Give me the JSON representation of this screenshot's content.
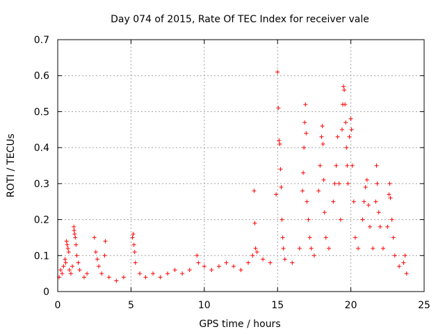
{
  "chart_data": {
    "type": "scatter",
    "title": "Day 074 of 2015, Rate Of TEC Index for receiver vale",
    "xlabel": "GPS time / hours",
    "ylabel": "ROTI / TECUs",
    "xlim": [
      0,
      25
    ],
    "ylim": [
      0,
      0.7
    ],
    "x_ticks": [
      0,
      5,
      10,
      15,
      20,
      25
    ],
    "x_tick_labels": [
      "0",
      "5",
      "10",
      "15",
      "20",
      "25"
    ],
    "y_ticks": [
      0,
      0.1,
      0.2,
      0.3,
      0.4,
      0.5,
      0.6,
      0.7
    ],
    "y_tick_labels": [
      "0",
      "0.1",
      "0.2",
      "0.3",
      "0.4",
      "0.5",
      "0.6",
      "0.7"
    ],
    "grid": true,
    "marker": "+",
    "color": "#ff0000",
    "series": [
      {
        "name": "ROTI",
        "points": [
          [
            0.1,
            0.04
          ],
          [
            0.2,
            0.06
          ],
          [
            0.3,
            0.05
          ],
          [
            0.4,
            0.07
          ],
          [
            0.5,
            0.09
          ],
          [
            0.55,
            0.08
          ],
          [
            0.6,
            0.14
          ],
          [
            0.65,
            0.13
          ],
          [
            0.7,
            0.12
          ],
          [
            0.75,
            0.11
          ],
          [
            0.8,
            0.06
          ],
          [
            0.9,
            0.05
          ],
          [
            1.0,
            0.07
          ],
          [
            1.1,
            0.18
          ],
          [
            1.12,
            0.17
          ],
          [
            1.15,
            0.16
          ],
          [
            1.2,
            0.15
          ],
          [
            1.25,
            0.13
          ],
          [
            1.3,
            0.1
          ],
          [
            1.4,
            0.08
          ],
          [
            1.5,
            0.06
          ],
          [
            1.8,
            0.04
          ],
          [
            2.0,
            0.05
          ],
          [
            2.5,
            0.15
          ],
          [
            2.6,
            0.11
          ],
          [
            2.7,
            0.09
          ],
          [
            2.8,
            0.07
          ],
          [
            3.0,
            0.05
          ],
          [
            3.2,
            0.1
          ],
          [
            3.25,
            0.14
          ],
          [
            3.5,
            0.04
          ],
          [
            4.0,
            0.03
          ],
          [
            4.5,
            0.04
          ],
          [
            5.1,
            0.15
          ],
          [
            5.15,
            0.16
          ],
          [
            5.2,
            0.13
          ],
          [
            5.25,
            0.11
          ],
          [
            5.3,
            0.08
          ],
          [
            5.6,
            0.05
          ],
          [
            6.0,
            0.04
          ],
          [
            6.5,
            0.05
          ],
          [
            7.0,
            0.04
          ],
          [
            7.5,
            0.05
          ],
          [
            8.0,
            0.06
          ],
          [
            8.5,
            0.05
          ],
          [
            9.0,
            0.06
          ],
          [
            9.5,
            0.1
          ],
          [
            9.6,
            0.08
          ],
          [
            10.0,
            0.07
          ],
          [
            10.5,
            0.06
          ],
          [
            11.0,
            0.07
          ],
          [
            11.5,
            0.08
          ],
          [
            12.0,
            0.07
          ],
          [
            12.5,
            0.06
          ],
          [
            13.0,
            0.08
          ],
          [
            13.3,
            0.1
          ],
          [
            13.4,
            0.28
          ],
          [
            13.45,
            0.19
          ],
          [
            13.5,
            0.12
          ],
          [
            13.6,
            0.11
          ],
          [
            14.0,
            0.09
          ],
          [
            14.5,
            0.08
          ],
          [
            14.9,
            0.27
          ],
          [
            15.0,
            0.61
          ],
          [
            15.05,
            0.51
          ],
          [
            15.1,
            0.42
          ],
          [
            15.15,
            0.41
          ],
          [
            15.2,
            0.34
          ],
          [
            15.25,
            0.29
          ],
          [
            15.3,
            0.2
          ],
          [
            15.35,
            0.15
          ],
          [
            15.4,
            0.12
          ],
          [
            15.5,
            0.09
          ],
          [
            16.0,
            0.08
          ],
          [
            16.5,
            0.12
          ],
          [
            16.7,
            0.28
          ],
          [
            16.75,
            0.33
          ],
          [
            16.8,
            0.4
          ],
          [
            16.85,
            0.47
          ],
          [
            16.9,
            0.52
          ],
          [
            16.95,
            0.44
          ],
          [
            17.0,
            0.25
          ],
          [
            17.1,
            0.2
          ],
          [
            17.2,
            0.15
          ],
          [
            17.3,
            0.12
          ],
          [
            17.5,
            0.1
          ],
          [
            17.8,
            0.28
          ],
          [
            17.9,
            0.35
          ],
          [
            18.0,
            0.43
          ],
          [
            18.05,
            0.46
          ],
          [
            18.1,
            0.41
          ],
          [
            18.15,
            0.31
          ],
          [
            18.2,
            0.22
          ],
          [
            18.3,
            0.15
          ],
          [
            18.5,
            0.12
          ],
          [
            18.8,
            0.25
          ],
          [
            18.9,
            0.3
          ],
          [
            19.0,
            0.35
          ],
          [
            19.1,
            0.43
          ],
          [
            19.2,
            0.3
          ],
          [
            19.3,
            0.2
          ],
          [
            19.4,
            0.45
          ],
          [
            19.45,
            0.52
          ],
          [
            19.5,
            0.57
          ],
          [
            19.55,
            0.56
          ],
          [
            19.6,
            0.52
          ],
          [
            19.65,
            0.47
          ],
          [
            19.7,
            0.4
          ],
          [
            19.75,
            0.35
          ],
          [
            19.8,
            0.3
          ],
          [
            19.9,
            0.43
          ],
          [
            20.0,
            0.48
          ],
          [
            20.05,
            0.45
          ],
          [
            20.1,
            0.35
          ],
          [
            20.2,
            0.25
          ],
          [
            20.3,
            0.15
          ],
          [
            20.5,
            0.12
          ],
          [
            20.8,
            0.2
          ],
          [
            20.9,
            0.25
          ],
          [
            21.0,
            0.29
          ],
          [
            21.1,
            0.31
          ],
          [
            21.2,
            0.24
          ],
          [
            21.3,
            0.18
          ],
          [
            21.5,
            0.12
          ],
          [
            21.7,
            0.25
          ],
          [
            21.75,
            0.35
          ],
          [
            21.8,
            0.3
          ],
          [
            21.9,
            0.22
          ],
          [
            22.0,
            0.18
          ],
          [
            22.2,
            0.12
          ],
          [
            22.5,
            0.18
          ],
          [
            22.6,
            0.27
          ],
          [
            22.65,
            0.3
          ],
          [
            22.7,
            0.26
          ],
          [
            22.8,
            0.2
          ],
          [
            22.9,
            0.15
          ],
          [
            23.0,
            0.1
          ],
          [
            23.3,
            0.07
          ],
          [
            23.6,
            0.08
          ],
          [
            23.7,
            0.1
          ],
          [
            23.8,
            0.05
          ]
        ]
      }
    ]
  }
}
